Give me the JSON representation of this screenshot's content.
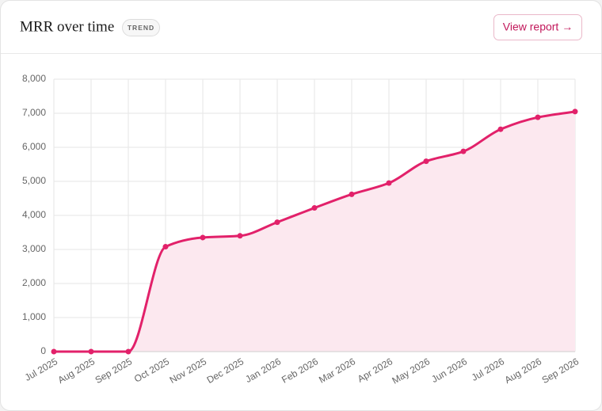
{
  "header": {
    "title": "MRR over time",
    "badge": "TREND",
    "button": "View report →"
  },
  "chart_data": {
    "type": "line",
    "categories": [
      "Jul 2025",
      "Aug 2025",
      "Sep 2025",
      "Oct 2025",
      "Nov 2025",
      "Dec 2025",
      "Jan 2026",
      "Feb 2026",
      "Mar 2026",
      "Apr 2026",
      "May 2026",
      "Jun 2026",
      "Jul 2026",
      "Aug 2026",
      "Sep 2026"
    ],
    "series": [
      {
        "name": "MRR",
        "color": "#e2216a",
        "values": [
          0,
          0,
          0,
          3080,
          3350,
          3400,
          3800,
          4220,
          4620,
          4950,
          5590,
          5880,
          6530,
          6880,
          7050
        ]
      }
    ],
    "area_color": "#fce8ef",
    "ylim": [
      0,
      8000
    ],
    "yticks": [
      0,
      {
        "value": 1000,
        "label": "1,000"
      },
      {
        "value": 2000,
        "label": "2,000"
      },
      {
        "value": 3000,
        "label": "3,000"
      },
      {
        "value": 4000,
        "label": "4,000"
      },
      {
        "value": 5000,
        "label": "5,000"
      },
      {
        "value": 6000,
        "label": "6,000"
      },
      {
        "value": 7000,
        "label": "7,000"
      },
      {
        "value": 8000,
        "label": "8,000"
      }
    ],
    "grid": true
  }
}
